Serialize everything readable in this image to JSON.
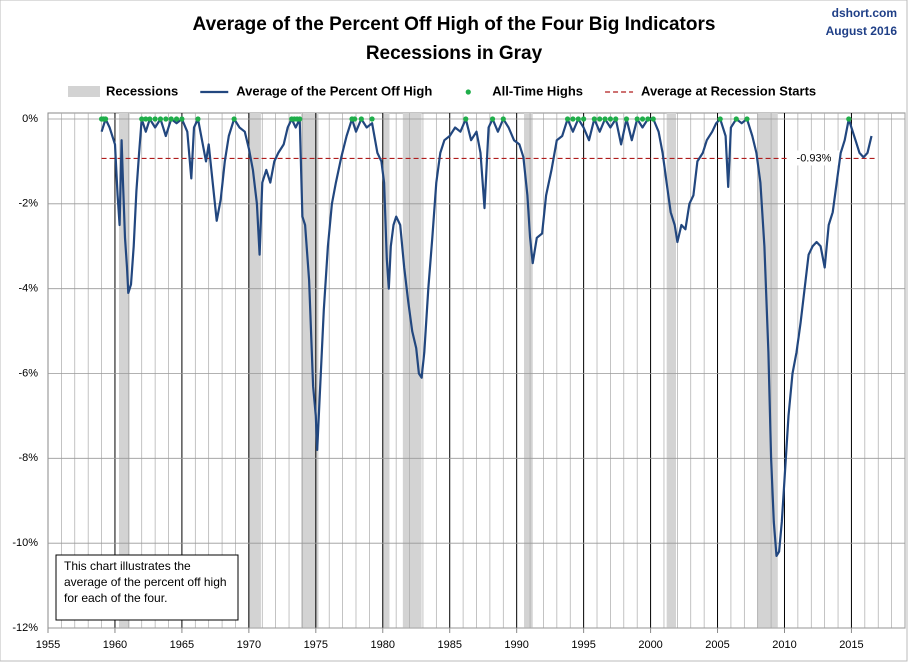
{
  "chart_data": {
    "type": "line",
    "title": "Average of the Percent Off High of the Four Big Indicators",
    "subtitle": "Recessions in Gray",
    "source": "dshort.com",
    "date": "August 2016",
    "annotation": "This chart illustrates the average of the percent off high for each of the four.",
    "xlim": [
      1955,
      2019
    ],
    "xticks": [
      1955,
      1960,
      1965,
      1970,
      1975,
      1980,
      1985,
      1990,
      1995,
      2000,
      2005,
      2010,
      2015
    ],
    "ylim": [
      -12,
      0
    ],
    "yticks": [
      {
        "value": 0,
        "label": "0%"
      },
      {
        "value": -2,
        "label": "-2%"
      },
      {
        "value": -4,
        "label": "-4%"
      },
      {
        "value": -6,
        "label": "-6%"
      },
      {
        "value": -8,
        "label": "-8%"
      },
      {
        "value": -10,
        "label": "-10%"
      },
      {
        "value": -12,
        "label": "-12%"
      }
    ],
    "grid": true,
    "series": [
      {
        "name": "Recessions",
        "type": "span",
        "color": "#d3d3d3",
        "spans": [
          [
            1960.3,
            1961.1
          ],
          [
            1969.95,
            1970.9
          ],
          [
            1973.9,
            1975.2
          ],
          [
            1980.0,
            1980.5
          ],
          [
            1981.5,
            1982.9
          ],
          [
            1990.55,
            1991.2
          ],
          [
            2001.2,
            2001.9
          ],
          [
            2007.95,
            2009.5
          ]
        ]
      },
      {
        "name": "Average of the Percent Off High",
        "type": "line",
        "color": "#22477f",
        "x": [
          1959.0,
          1959.3,
          1959.6,
          1960.0,
          1960.2,
          1960.35,
          1960.5,
          1960.6,
          1960.75,
          1960.9,
          1961.0,
          1961.2,
          1961.4,
          1961.6,
          1961.8,
          1962.0,
          1962.3,
          1962.6,
          1963.0,
          1963.4,
          1963.8,
          1964.2,
          1964.6,
          1965.0,
          1965.4,
          1965.7,
          1965.9,
          1966.2,
          1966.5,
          1966.8,
          1967.0,
          1967.3,
          1967.6,
          1967.9,
          1968.2,
          1968.5,
          1968.9,
          1969.3,
          1969.7,
          1970.0,
          1970.3,
          1970.6,
          1970.8,
          1971.0,
          1971.3,
          1971.6,
          1971.9,
          1972.2,
          1972.6,
          1972.9,
          1973.2,
          1973.5,
          1973.8,
          1974.0,
          1974.2,
          1974.5,
          1974.8,
          1975.0,
          1975.1,
          1975.3,
          1975.6,
          1975.9,
          1976.2,
          1976.5,
          1976.9,
          1977.3,
          1977.7,
          1978.0,
          1978.4,
          1978.8,
          1979.2,
          1979.6,
          1979.9,
          1980.1,
          1980.3,
          1980.45,
          1980.6,
          1980.8,
          1981.0,
          1981.3,
          1981.6,
          1981.9,
          1982.2,
          1982.5,
          1982.7,
          1982.9,
          1983.1,
          1983.4,
          1983.7,
          1984.0,
          1984.3,
          1984.6,
          1985.0,
          1985.4,
          1985.8,
          1986.2,
          1986.6,
          1987.0,
          1987.3,
          1987.6,
          1987.9,
          1988.2,
          1988.6,
          1989.0,
          1989.4,
          1989.8,
          1990.2,
          1990.5,
          1990.8,
          1991.0,
          1991.2,
          1991.5,
          1991.9,
          1992.2,
          1992.6,
          1993.0,
          1993.4,
          1993.8,
          1994.2,
          1994.6,
          1995.0,
          1995.4,
          1995.8,
          1996.2,
          1996.6,
          1997.0,
          1997.4,
          1997.8,
          1998.2,
          1998.6,
          1999.0,
          1999.4,
          1999.8,
          2000.2,
          2000.6,
          2000.9,
          2001.2,
          2001.5,
          2001.8,
          2002.0,
          2002.3,
          2002.6,
          2002.9,
          2003.2,
          2003.5,
          2003.9,
          2004.2,
          2004.6,
          2004.9,
          2005.2,
          2005.6,
          2005.8,
          2006.0,
          2006.4,
          2006.8,
          2007.2,
          2007.6,
          2007.9,
          2008.2,
          2008.5,
          2008.8,
          2009.0,
          2009.2,
          2009.4,
          2009.6,
          2009.8,
          2010.0,
          2010.3,
          2010.6,
          2010.9,
          2011.2,
          2011.5,
          2011.8,
          2012.1,
          2012.4,
          2012.7,
          2013.0,
          2013.3,
          2013.6,
          2013.9,
          2014.2,
          2014.5,
          2014.8,
          2015.0,
          2015.3,
          2015.6,
          2015.9,
          2016.2,
          2016.5
        ],
        "values": [
          -0.3,
          0,
          -0.2,
          -0.6,
          -1.8,
          -2.5,
          -0.5,
          -1.5,
          -2.8,
          -3.5,
          -4.1,
          -3.9,
          -3.0,
          -1.7,
          -0.8,
          0,
          -0.3,
          0,
          -0.2,
          0,
          -0.4,
          0,
          -0.1,
          0,
          -0.3,
          -1.4,
          -0.2,
          0,
          -0.5,
          -1.0,
          -0.6,
          -1.5,
          -2.4,
          -1.9,
          -1.0,
          -0.4,
          0,
          -0.2,
          -0.3,
          -0.7,
          -1.2,
          -2.0,
          -3.2,
          -1.5,
          -1.2,
          -1.5,
          -1.0,
          -0.8,
          -0.6,
          -0.2,
          0,
          -0.2,
          0,
          -2.3,
          -2.5,
          -3.8,
          -6.3,
          -7.0,
          -7.8,
          -6.5,
          -4.5,
          -3.0,
          -2.0,
          -1.5,
          -0.9,
          -0.4,
          0,
          -0.3,
          0,
          -0.2,
          -0.1,
          -0.8,
          -1.0,
          -1.5,
          -3.3,
          -4.0,
          -3.0,
          -2.5,
          -2.3,
          -2.5,
          -3.5,
          -4.3,
          -5.0,
          -5.4,
          -6.0,
          -6.1,
          -5.5,
          -4.0,
          -2.8,
          -1.5,
          -0.8,
          -0.5,
          -0.4,
          -0.2,
          -0.3,
          0,
          -0.5,
          -0.3,
          -0.8,
          -2.1,
          -0.2,
          0,
          -0.3,
          0,
          -0.2,
          -0.5,
          -0.6,
          -0.9,
          -1.8,
          -2.8,
          -3.4,
          -2.8,
          -2.7,
          -1.8,
          -1.2,
          -0.5,
          -0.4,
          0,
          -0.3,
          0,
          -0.2,
          -0.5,
          0,
          -0.3,
          0,
          -0.2,
          0,
          -0.6,
          0,
          -0.5,
          0,
          -0.2,
          0,
          0,
          -0.3,
          -0.8,
          -1.5,
          -2.2,
          -2.5,
          -2.9,
          -2.5,
          -2.6,
          -2.0,
          -1.8,
          -1.0,
          -0.8,
          -0.5,
          -0.3,
          -0.1,
          0,
          -0.4,
          -1.6,
          -0.2,
          0,
          -0.1,
          0,
          -0.4,
          -0.8,
          -1.5,
          -3.0,
          -5.5,
          -8.0,
          -9.5,
          -10.3,
          -10.2,
          -9.5,
          -8.5,
          -7.0,
          -6.0,
          -5.5,
          -4.8,
          -4.0,
          -3.2,
          -3.0,
          -2.9,
          -3.0,
          -3.5,
          -2.5,
          -2.2,
          -1.5,
          -0.8,
          -0.5,
          0,
          -0.2,
          -0.5,
          -0.8,
          -0.9,
          -0.8,
          -0.4
        ]
      },
      {
        "name": "All-Time Highs",
        "type": "scatter",
        "color": "#1fae4a",
        "x": [
          1959.0,
          1959.15,
          1959.3,
          1962.0,
          1962.3,
          1962.6,
          1963.0,
          1963.4,
          1963.8,
          1964.2,
          1964.6,
          1965.0,
          1966.2,
          1968.9,
          1973.2,
          1973.4,
          1973.6,
          1973.8,
          1977.7,
          1977.9,
          1978.4,
          1979.2,
          1986.2,
          1988.2,
          1989.0,
          1993.8,
          1994.2,
          1994.6,
          1995.0,
          1995.8,
          1996.2,
          1996.6,
          1997.0,
          1997.4,
          1998.2,
          1999.0,
          1999.4,
          1999.8,
          2000.2,
          2005.2,
          2006.4,
          2007.2,
          2014.8
        ],
        "values": [
          0,
          0,
          0,
          0,
          0,
          0,
          0,
          0,
          0,
          0,
          0,
          0,
          0,
          0,
          0,
          0,
          0,
          0,
          0,
          0,
          0,
          0,
          0,
          0,
          0,
          0,
          0,
          0,
          0,
          0,
          0,
          0,
          0,
          0,
          0,
          0,
          0,
          0,
          0,
          0,
          0,
          0,
          0
        ]
      }
    ],
    "reference": {
      "name": "Average at Recession Starts",
      "value": -0.93,
      "label": "-0.93%",
      "color": "#b01c1c"
    }
  }
}
